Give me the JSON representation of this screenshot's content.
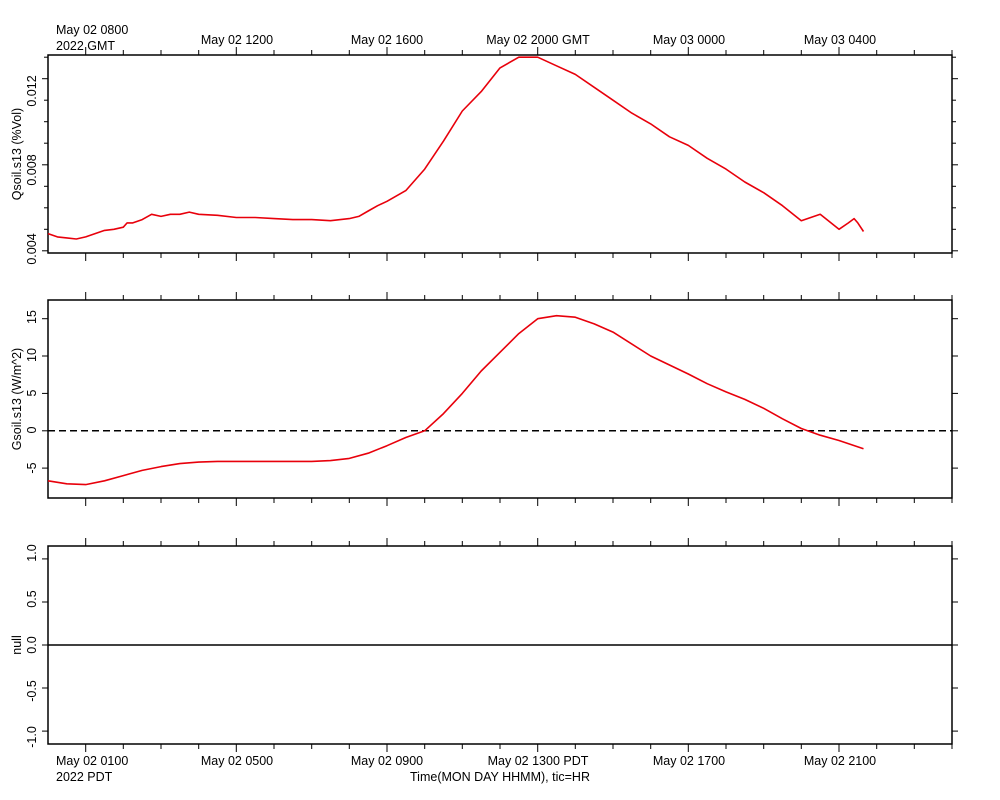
{
  "top_axis": {
    "first_label": [
      "May 02 0800",
      "2022 GMT"
    ],
    "labels": [
      "May 02 1200",
      "May 02 1600",
      "May 02 2000 GMT",
      "May 03 0000",
      "May 03 0400"
    ]
  },
  "bottom_axis": {
    "first_label": [
      "May 02 0100",
      "2022 PDT"
    ],
    "labels": [
      "May 02 0500",
      "May 02 0900",
      "May 02 1300 PDT",
      "May 02 1700",
      "May 02 2100"
    ],
    "title": "Time(MON DAY HHMM), tic=HR"
  },
  "colors": {
    "series": "#e8000b",
    "axis": "#000000"
  },
  "chart_data": [
    {
      "type": "line",
      "ylabel": "Qsoil.s13 (%Vol)",
      "ylim": [
        0.0039,
        0.0131
      ],
      "yticks": [
        "0.004",
        "0.008",
        "0.012"
      ],
      "x_unit": "hours since May 02 0000 PDT",
      "xlim": [
        0.0,
        24.0
      ],
      "series": [
        {
          "x": [
            0.0,
            0.25,
            0.5,
            0.75,
            1.0,
            1.25,
            1.5,
            1.75,
            2.0,
            2.1,
            2.25,
            2.5,
            2.75,
            3.0,
            3.25,
            3.5,
            3.75,
            4.0,
            4.5,
            5.0,
            5.5,
            6.0,
            6.5,
            7.0,
            7.5,
            8.0,
            8.25,
            8.5,
            8.75,
            9.0,
            9.5,
            10.0,
            10.5,
            11.0,
            11.5,
            12.0,
            12.5,
            12.75,
            13.0,
            13.5,
            14.0,
            14.5,
            15.0,
            15.5,
            16.0,
            16.5,
            17.0,
            17.5,
            18.0,
            18.5,
            19.0,
            19.5,
            20.0,
            20.5,
            21.0,
            21.25,
            21.4,
            21.5,
            21.65
          ],
          "y": [
            0.0048,
            0.00465,
            0.0046,
            0.00455,
            0.00465,
            0.0048,
            0.00495,
            0.005,
            0.0051,
            0.0053,
            0.0053,
            0.00545,
            0.0057,
            0.0056,
            0.0057,
            0.0057,
            0.0058,
            0.0057,
            0.00565,
            0.00555,
            0.00555,
            0.0055,
            0.00545,
            0.00545,
            0.0054,
            0.0055,
            0.0056,
            0.00585,
            0.0061,
            0.0063,
            0.0068,
            0.0078,
            0.0091,
            0.0105,
            0.0114,
            0.0125,
            0.013,
            0.013,
            0.013,
            0.0126,
            0.0122,
            0.0116,
            0.011,
            0.0104,
            0.0099,
            0.0093,
            0.0089,
            0.0083,
            0.0078,
            0.0072,
            0.0067,
            0.0061,
            0.0054,
            0.0057,
            0.005,
            0.0053,
            0.0055,
            0.0053,
            0.0049
          ]
        }
      ]
    },
    {
      "type": "line",
      "ylabel": "Gsoil.s13 (W/m^2)",
      "ylim": [
        -9,
        17.5
      ],
      "yticks": [
        "-5",
        "0",
        "5",
        "10",
        "15"
      ],
      "reference_line": {
        "y": 0,
        "style": "dashed"
      },
      "x_unit": "hours since May 02 0000 PDT",
      "xlim": [
        0.0,
        24.0
      ],
      "series": [
        {
          "x": [
            0.0,
            0.5,
            1.0,
            1.5,
            2.0,
            2.5,
            3.0,
            3.5,
            4.0,
            4.5,
            5.0,
            6.0,
            7.0,
            7.5,
            8.0,
            8.5,
            9.0,
            9.5,
            10.0,
            10.5,
            11.0,
            11.5,
            12.0,
            12.5,
            13.0,
            13.5,
            14.0,
            14.5,
            15.0,
            16.0,
            17.0,
            17.5,
            18.0,
            18.5,
            19.0,
            19.5,
            20.0,
            20.5,
            21.0,
            21.65
          ],
          "y": [
            -6.7,
            -7.1,
            -7.2,
            -6.7,
            -6.0,
            -5.3,
            -4.8,
            -4.4,
            -4.2,
            -4.1,
            -4.1,
            -4.1,
            -4.1,
            -4.0,
            -3.7,
            -3.0,
            -2.0,
            -0.9,
            0.0,
            2.3,
            5.0,
            8.0,
            10.5,
            13.0,
            15.0,
            15.4,
            15.2,
            14.3,
            13.2,
            10.0,
            7.6,
            6.3,
            5.2,
            4.2,
            3.0,
            1.6,
            0.3,
            -0.6,
            -1.3,
            -2.4
          ]
        }
      ]
    },
    {
      "type": "line",
      "ylabel": "null",
      "ylim": [
        -1.15,
        1.15
      ],
      "yticks": [
        "-1.0",
        "-0.5",
        "0.0",
        "0.5",
        "1.0"
      ],
      "reference_line": {
        "y": 0,
        "style": "solid"
      },
      "series": []
    }
  ]
}
